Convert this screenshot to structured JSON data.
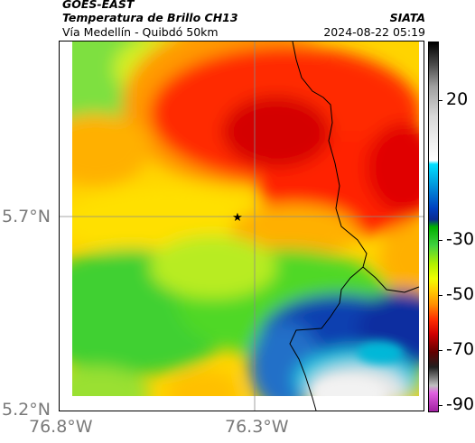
{
  "header": {
    "satellite": "GOES-EAST",
    "product": "Temperatura de Brillo CH13",
    "route": "Vía Medellín - Quibdó 50km",
    "agency": "SIATA",
    "datetime": "2024-08-22 05:19"
  },
  "map": {
    "y_ticks": [
      "5.7°N",
      "5.2°N"
    ],
    "x_ticks": [
      "76.8°W",
      "76.3°W"
    ],
    "marker": "star-icon"
  },
  "colorbar": {
    "labels": [
      "20",
      "-30",
      "-50",
      "-70",
      "-90"
    ]
  },
  "colors": {
    "frame": "#000000",
    "axis_text": "#7a7a7a",
    "gridline": "#8a8a8a"
  }
}
